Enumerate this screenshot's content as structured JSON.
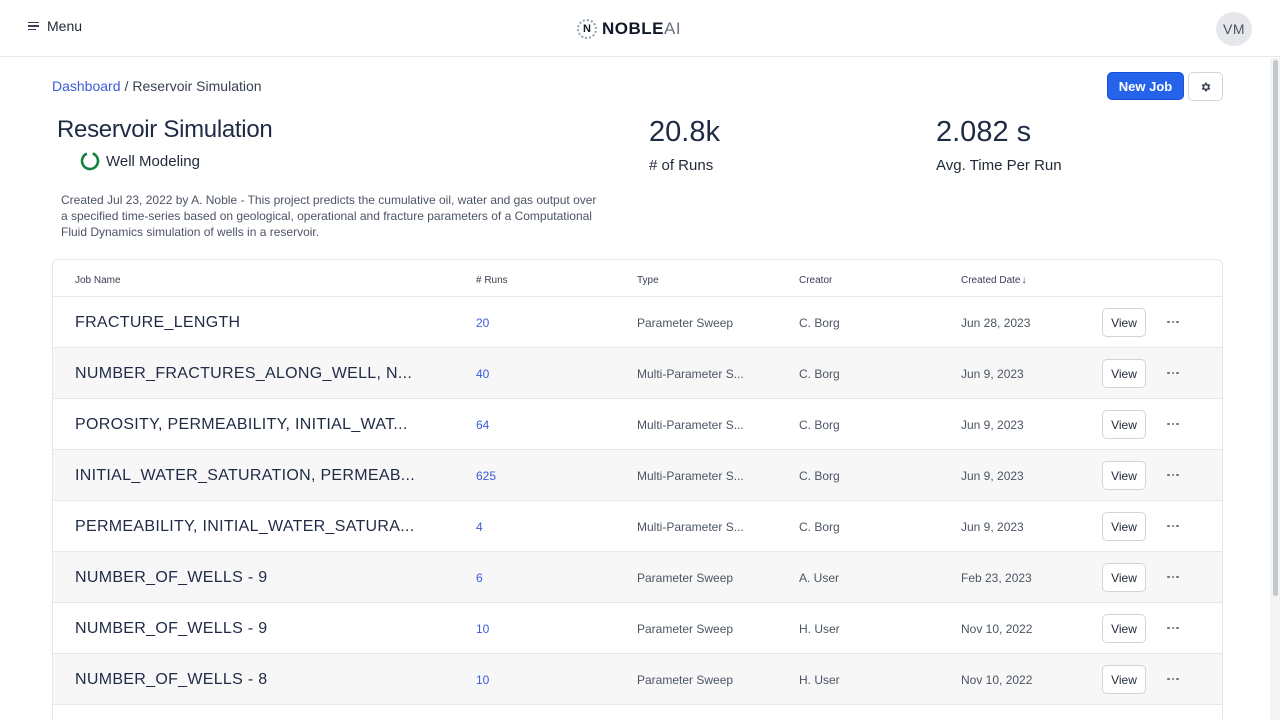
{
  "nav": {
    "menu_label": "Menu",
    "logo_mark": "N",
    "logo_word_bold": "NOBLE",
    "logo_word_light": "AI",
    "avatar_initials": "VM"
  },
  "breadcrumb": {
    "root": "Dashboard",
    "separator": "/",
    "current": "Reservoir Simulation"
  },
  "actions": {
    "new_job_label": "New Job",
    "settings_icon": "gear-icon"
  },
  "project": {
    "title": "Reservoir Simulation",
    "category": "Well Modeling",
    "description": "Created Jul 23, 2022 by A. Noble - This project predicts the cumulative oil, water and gas output over a specified time-series based on geological, operational and fracture parameters of a Computational Fluid Dynamics simulation of wells in a reservoir."
  },
  "stats": {
    "runs_value": "20.8k",
    "runs_label": "# of Runs",
    "time_value": "2.082 s",
    "time_label": "Avg. Time Per Run"
  },
  "table": {
    "headers": {
      "job_name": "Job Name",
      "runs": "# Runs",
      "type": "Type",
      "creator": "Creator",
      "created_date": "Created Date"
    },
    "view_label": "View",
    "rows": [
      {
        "name": "FRACTURE_LENGTH",
        "runs": "20",
        "type": "Parameter Sweep",
        "creator": "C. Borg",
        "date": "Jun 28, 2023"
      },
      {
        "name": "NUMBER_FRACTURES_ALONG_WELL, N...",
        "runs": "40",
        "type": "Multi-Parameter S...",
        "creator": "C. Borg",
        "date": "Jun 9, 2023"
      },
      {
        "name": "POROSITY, PERMEABILITY, INITIAL_WAT...",
        "runs": "64",
        "type": "Multi-Parameter S...",
        "creator": "C. Borg",
        "date": "Jun 9, 2023"
      },
      {
        "name": "INITIAL_WATER_SATURATION, PERMEAB...",
        "runs": "625",
        "type": "Multi-Parameter S...",
        "creator": "C. Borg",
        "date": "Jun 9, 2023"
      },
      {
        "name": "PERMEABILITY, INITIAL_WATER_SATURA...",
        "runs": "4",
        "type": "Multi-Parameter S...",
        "creator": "C. Borg",
        "date": "Jun 9, 2023"
      },
      {
        "name": "NUMBER_OF_WELLS - 9",
        "runs": "6",
        "type": "Parameter Sweep",
        "creator": "A. User",
        "date": "Feb 23, 2023"
      },
      {
        "name": "NUMBER_OF_WELLS - 9",
        "runs": "10",
        "type": "Parameter Sweep",
        "creator": "H. User",
        "date": "Nov 10, 2022"
      },
      {
        "name": "NUMBER_OF_WELLS - 8",
        "runs": "10",
        "type": "Parameter Sweep",
        "creator": "H. User",
        "date": "Nov 10, 2022"
      }
    ]
  },
  "colors": {
    "accent": "#2563eb",
    "link": "#3b5bdb",
    "ring_green": "#15803d"
  }
}
